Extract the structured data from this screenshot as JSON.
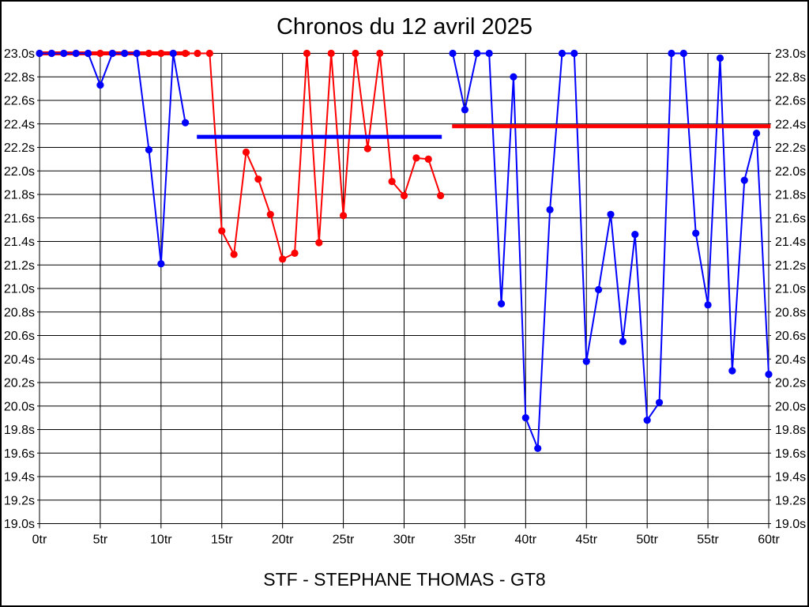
{
  "page": {
    "title": "Chronos du 12 avril 2025",
    "footer": "STF - STEPHANE THOMAS - GT8"
  },
  "colors": {
    "blue_series": "#0000ff",
    "red_series": "#ff0000",
    "grid": "#000000",
    "background": "#ffffff",
    "text": "#000000"
  },
  "chart_data": {
    "type": "line",
    "title": "Chronos du 12 avril 2025",
    "xlabel": "",
    "ylabel": "",
    "x_unit": "tr",
    "y_unit": "s",
    "xlim": [
      0,
      60
    ],
    "ylim": [
      19.0,
      23.0
    ],
    "x_tick_step": 5,
    "y_tick_step": 0.2,
    "grid": true,
    "legend": "none",
    "x_tick_labels": [
      "0tr",
      "5tr",
      "10tr",
      "15tr",
      "20tr",
      "25tr",
      "30tr",
      "35tr",
      "40tr",
      "45tr",
      "50tr",
      "55tr",
      "60tr"
    ],
    "y_tick_labels": [
      "23.0s",
      "22.8s",
      "22.6s",
      "22.4s",
      "22.2s",
      "22.0s",
      "21.8s",
      "21.6s",
      "21.4s",
      "21.2s",
      "21.0s",
      "20.8s",
      "20.6s",
      "20.4s",
      "20.2s",
      "20.0s",
      "19.8s",
      "19.6s",
      "19.4s",
      "19.2s",
      "19.0s"
    ],
    "series": [
      {
        "name": "red-driver-laps",
        "color": "#ff0000",
        "x": [
          0,
          1,
          2,
          3,
          4,
          5,
          6,
          7,
          8,
          9,
          10,
          11,
          12,
          13,
          14,
          15,
          16,
          17,
          18,
          19,
          20,
          21,
          22,
          23,
          24,
          25,
          26,
          27,
          28,
          29,
          30,
          31,
          32,
          33
        ],
        "y": [
          23.0,
          23.0,
          23.0,
          23.0,
          23.0,
          23.0,
          23.0,
          23.0,
          23.0,
          23.0,
          23.0,
          23.0,
          23.0,
          23.0,
          23.0,
          21.49,
          21.29,
          22.16,
          21.93,
          21.63,
          21.25,
          21.3,
          23.0,
          21.39,
          23.0,
          21.62,
          23.0,
          22.19,
          23.0,
          21.91,
          21.79,
          22.11,
          22.1,
          21.79
        ]
      },
      {
        "name": "blue-driver-stint-1",
        "color": "#0000ff",
        "x": [
          0,
          1,
          2,
          3,
          4,
          5,
          6,
          7,
          8,
          9,
          10,
          11,
          12
        ],
        "y": [
          23.0,
          23.0,
          23.0,
          23.0,
          23.0,
          22.73,
          23.0,
          23.0,
          23.0,
          22.18,
          21.21,
          23.0,
          22.41
        ]
      },
      {
        "name": "blue-driver-stint-2",
        "color": "#0000ff",
        "x": [
          34,
          35,
          36,
          37,
          38,
          39,
          40,
          41,
          42,
          43,
          44,
          45,
          46,
          47,
          48,
          49,
          50,
          51,
          52,
          53,
          54,
          55,
          56,
          57,
          58,
          59,
          60
        ],
        "y": [
          23.0,
          22.52,
          23.0,
          23.0,
          20.87,
          22.8,
          19.9,
          19.64,
          21.67,
          23.0,
          23.0,
          20.38,
          20.99,
          21.63,
          20.55,
          21.46,
          19.88,
          20.03,
          23.0,
          23.0,
          21.47,
          20.86,
          22.96,
          20.3,
          21.92,
          22.32,
          20.27
        ]
      }
    ],
    "reference_lines": [
      {
        "name": "red-reference-line-1",
        "color": "#ff0000",
        "y": 23.0,
        "x_start": 0,
        "x_end": 12.35
      },
      {
        "name": "blue-reference-line",
        "color": "#0000ff",
        "y": 22.29,
        "x_start": 12.95,
        "x_end": 33.1
      },
      {
        "name": "red-reference-line-2",
        "color": "#ff0000",
        "y": 22.38,
        "x_start": 33.95,
        "x_end": 60.15
      }
    ],
    "draw_order": [
      "ref:0",
      "series:0",
      "series:1",
      "ref:1",
      "series:2",
      "ref:2"
    ]
  }
}
